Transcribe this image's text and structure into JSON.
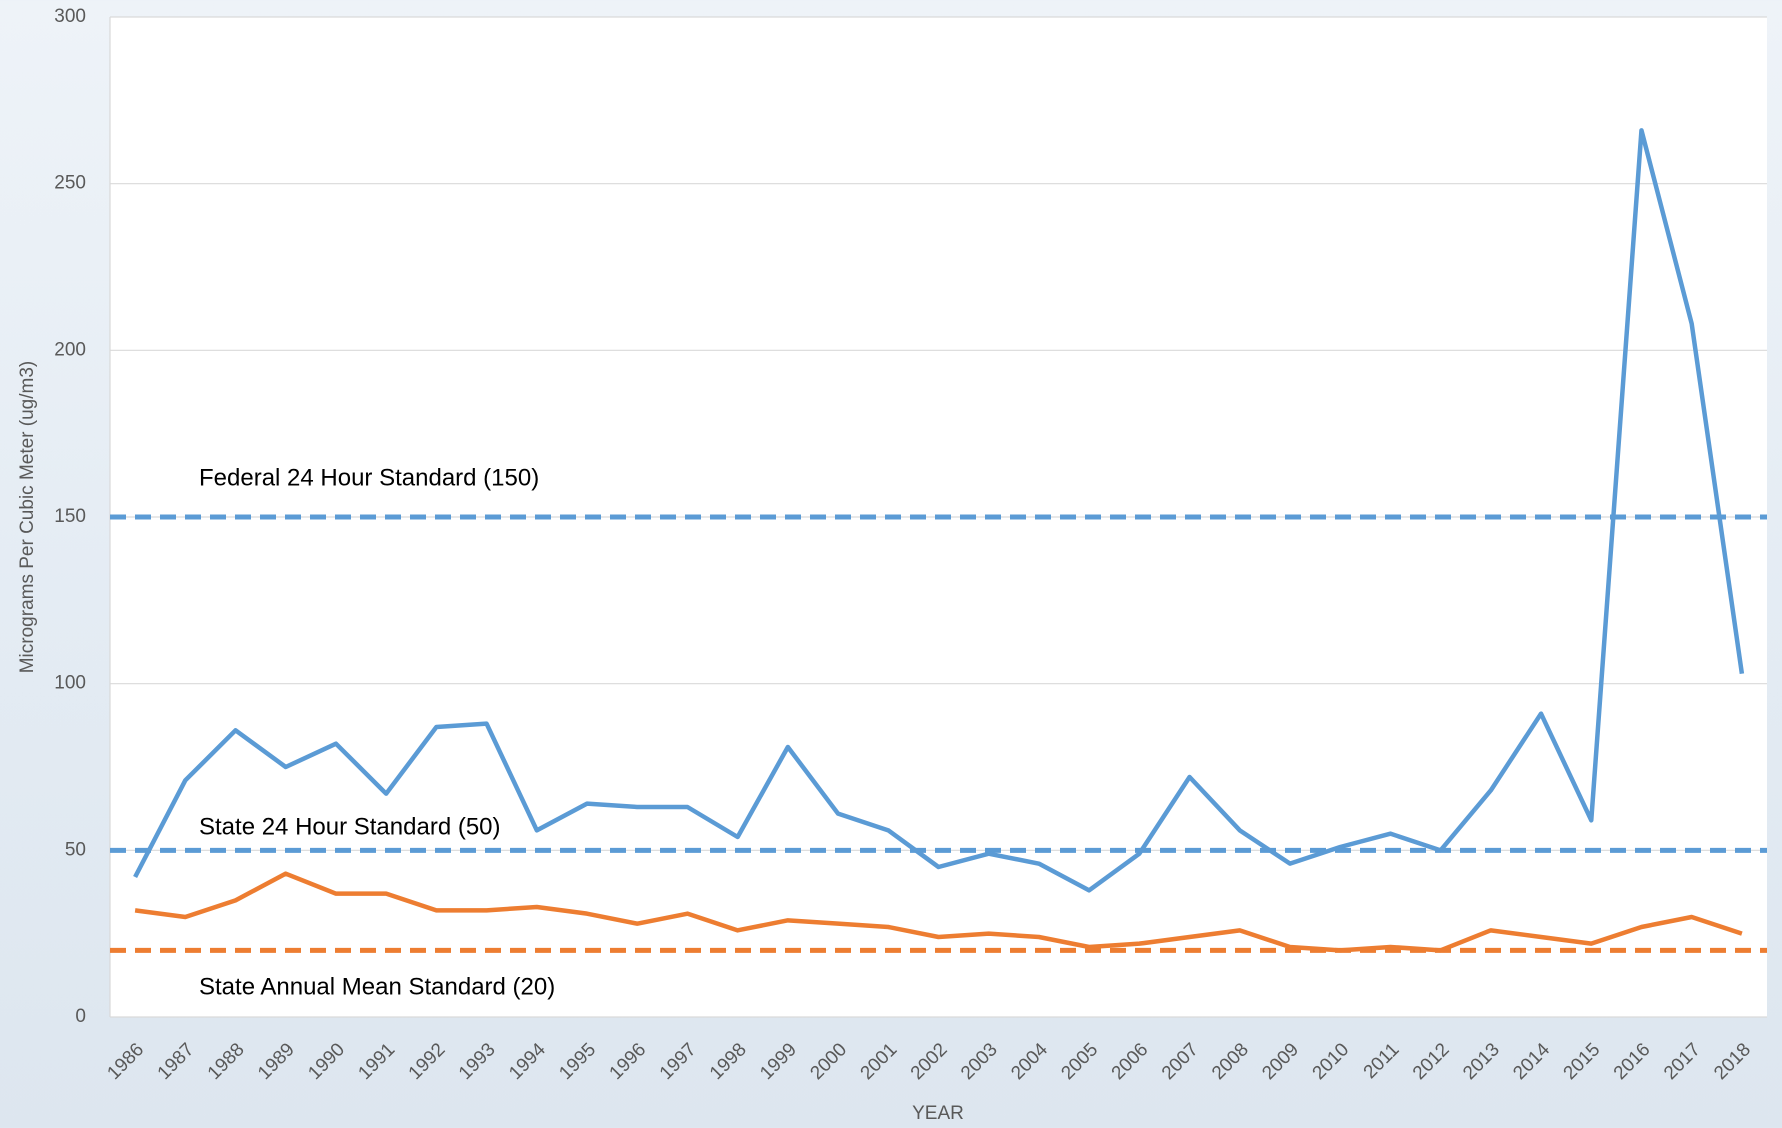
{
  "chart_data": {
    "type": "line",
    "x_label": "YEAR",
    "y_label": "Micrograms Per Cubic Meter (ug/m3)",
    "categories": [
      "1986",
      "1987",
      "1988",
      "1989",
      "1990",
      "1991",
      "1992",
      "1993",
      "1994",
      "1995",
      "1996",
      "1997",
      "1998",
      "1999",
      "2000",
      "2001",
      "2002",
      "2003",
      "2004",
      "2005",
      "2006",
      "2007",
      "2008",
      "2009",
      "2010",
      "2011",
      "2012",
      "2013",
      "2014",
      "2015",
      "2016",
      "2017",
      "2018"
    ],
    "series": [
      {
        "color": "#5b9bd5",
        "values": [
          42,
          71,
          86,
          75,
          82,
          67,
          87,
          88,
          56,
          64,
          63,
          63,
          54,
          81,
          61,
          56,
          45,
          49,
          46,
          38,
          49,
          72,
          56,
          46,
          51,
          55,
          50,
          68,
          91,
          59,
          266,
          208,
          103
        ]
      },
      {
        "color": "#ed7d31",
        "values": [
          32,
          30,
          35,
          43,
          37,
          37,
          32,
          32,
          33,
          31,
          28,
          31,
          26,
          29,
          28,
          27,
          24,
          25,
          24,
          21,
          22,
          24,
          26,
          21,
          20,
          21,
          20,
          26,
          24,
          22,
          27,
          30,
          25
        ]
      }
    ],
    "reference_lines": [
      {
        "value": 150,
        "label": "Federal 24 Hour Standard (150)",
        "color": "#5b9bd5"
      },
      {
        "value": 50,
        "label": "State 24 Hour Standard (50)",
        "color": "#5b9bd5"
      },
      {
        "value": 20,
        "label": "State Annual Mean Standard (20)",
        "color": "#ed7d31"
      }
    ],
    "ylim": [
      0,
      300
    ],
    "yticks": [
      0,
      50,
      100,
      150,
      200,
      250,
      300
    ],
    "grid": true
  }
}
